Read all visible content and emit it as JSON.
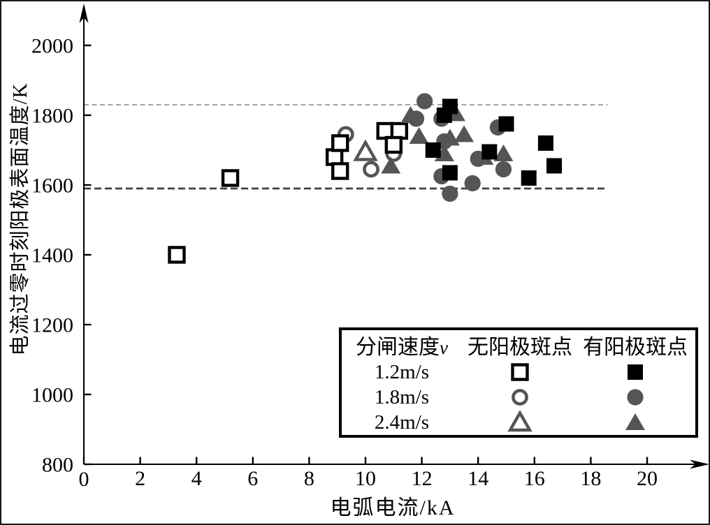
{
  "chart_data": {
    "type": "scatter",
    "title": "",
    "xlabel": "电弧电流/kA",
    "ylabel": "电流过零时刻阳极表面温度/K",
    "xlim": [
      0,
      21.8
    ],
    "ylim": [
      800,
      2110
    ],
    "xticks": [
      0,
      2,
      4,
      6,
      8,
      10,
      12,
      14,
      16,
      18,
      20
    ],
    "yticks": [
      800,
      1000,
      1200,
      1400,
      1600,
      1800,
      2000
    ],
    "grid": false,
    "legend_position": "lower right (boxed)",
    "reference_lines": [
      {
        "y": 1830,
        "x_start": 0,
        "x_end": 18.6,
        "color": "#878787",
        "width": 1.6,
        "dash": "7 4.5"
      },
      {
        "y": 1590,
        "x_start": 0,
        "x_end": 18.6,
        "color": "#404040",
        "width": 2.8,
        "dash": "10 5"
      }
    ],
    "series": [
      {
        "name": "1.8m/s 无阳极斑点",
        "marker": "circle",
        "fill": "open",
        "color": "#555555",
        "points": [
          [
            9.3,
            1745
          ],
          [
            10.2,
            1645
          ],
          [
            11.0,
            1690
          ]
        ]
      },
      {
        "name": "2.4m/s 无阳极斑点",
        "marker": "triangle",
        "fill": "open",
        "color": "#555555",
        "points": [
          [
            10.0,
            1695
          ]
        ]
      },
      {
        "name": "1.2m/s 无阳极斑点",
        "marker": "square",
        "fill": "open",
        "color": "#000000",
        "points": [
          [
            3.3,
            1400
          ],
          [
            5.2,
            1620
          ],
          [
            8.9,
            1680
          ],
          [
            9.1,
            1720
          ],
          [
            9.1,
            1640
          ],
          [
            10.7,
            1755
          ],
          [
            11.2,
            1755
          ],
          [
            11.0,
            1715
          ]
        ]
      },
      {
        "name": "1.8m/s 有阳极斑点",
        "marker": "circle",
        "fill": "solid",
        "color": "#555555",
        "points": [
          [
            12.1,
            1840
          ],
          [
            11.8,
            1790
          ],
          [
            12.7,
            1790
          ],
          [
            12.8,
            1725
          ],
          [
            12.7,
            1625
          ],
          [
            13.0,
            1575
          ],
          [
            13.8,
            1605
          ],
          [
            14.0,
            1675
          ],
          [
            14.7,
            1765
          ],
          [
            14.9,
            1645
          ]
        ]
      },
      {
        "name": "2.4m/s 有阳极斑点",
        "marker": "triangle",
        "fill": "solid",
        "color": "#555555",
        "points": [
          [
            11.6,
            1800
          ],
          [
            13.2,
            1805
          ],
          [
            11.9,
            1740
          ],
          [
            13.0,
            1735
          ],
          [
            13.5,
            1745
          ],
          [
            12.8,
            1690
          ],
          [
            10.9,
            1655
          ],
          [
            14.2,
            1680
          ],
          [
            14.9,
            1690
          ]
        ]
      },
      {
        "name": "1.2m/s 有阳极斑点",
        "marker": "square",
        "fill": "solid",
        "color": "#000000",
        "points": [
          [
            13.0,
            1825
          ],
          [
            12.8,
            1800
          ],
          [
            12.4,
            1700
          ],
          [
            13.0,
            1635
          ],
          [
            14.4,
            1695
          ],
          [
            15.0,
            1775
          ],
          [
            15.8,
            1620
          ],
          [
            16.4,
            1720
          ],
          [
            16.7,
            1655
          ]
        ]
      }
    ]
  },
  "legend": {
    "header": {
      "speed_label": "分闸速度",
      "speed_var": "v",
      "no_spot": "无阳极斑点",
      "with_spot": "有阳极斑点"
    },
    "rows": [
      {
        "speed": "1.2m/s",
        "marker": "square"
      },
      {
        "speed": "1.8m/s",
        "marker": "circle"
      },
      {
        "speed": "2.4m/s",
        "marker": "triangle"
      }
    ],
    "colors": {
      "square": "#000000",
      "circle": "#555555",
      "triangle": "#555555"
    }
  }
}
